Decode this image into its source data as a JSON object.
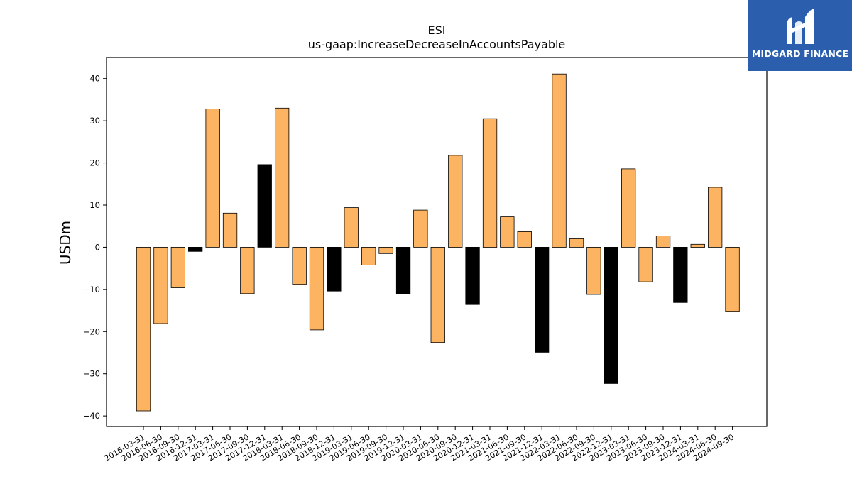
{
  "chart_data": {
    "type": "bar",
    "title": "ESI",
    "subtitle": "us-gaap:IncreaseDecreaseInAccountsPayable",
    "xlabel": "",
    "ylabel": "USDm",
    "ylim": [
      -42.5,
      45
    ],
    "yticks": [
      -40,
      -30,
      -20,
      -10,
      0,
      10,
      20,
      30,
      40
    ],
    "grid": false,
    "categories": [
      "2016-03-31",
      "2016-06-30",
      "2016-09-30",
      "2016-12-31",
      "2017-03-31",
      "2017-06-30",
      "2017-09-30",
      "2017-12-31",
      "2018-03-31",
      "2018-06-30",
      "2018-09-30",
      "2018-12-31",
      "2019-03-31",
      "2019-06-30",
      "2019-09-30",
      "2019-12-31",
      "2020-03-31",
      "2020-06-30",
      "2020-09-30",
      "2020-12-31",
      "2021-03-31",
      "2021-06-30",
      "2021-09-30",
      "2021-12-31",
      "2022-03-31",
      "2022-06-30",
      "2022-09-30",
      "2022-12-31",
      "2023-03-31",
      "2023-06-30",
      "2023-09-30",
      "2023-12-31",
      "2024-03-31",
      "2024-06-30",
      "2024-09-30"
    ],
    "values": [
      -38.8,
      -18.1,
      -9.6,
      -1.0,
      32.8,
      8.1,
      -11.0,
      19.6,
      33.0,
      -8.8,
      -19.6,
      -10.4,
      9.4,
      -4.2,
      -1.5,
      -11.0,
      8.8,
      -22.6,
      21.8,
      -13.6,
      30.5,
      7.2,
      3.7,
      -24.9,
      41.1,
      2.0,
      -11.2,
      -32.3,
      18.6,
      -8.2,
      2.7,
      -13.1,
      0.7,
      14.2,
      -15.2
    ],
    "highlight": [
      false,
      false,
      false,
      true,
      false,
      false,
      false,
      true,
      false,
      false,
      false,
      true,
      false,
      false,
      false,
      true,
      false,
      false,
      false,
      true,
      false,
      false,
      false,
      true,
      false,
      false,
      false,
      true,
      false,
      false,
      false,
      true,
      false,
      false,
      false
    ],
    "colors": {
      "bar": "#fdb462",
      "highlight": "#000000",
      "edge": "#000000"
    }
  },
  "logo": {
    "text": "MIDGARD FINANCE",
    "icon": "midgard-logo-icon"
  }
}
